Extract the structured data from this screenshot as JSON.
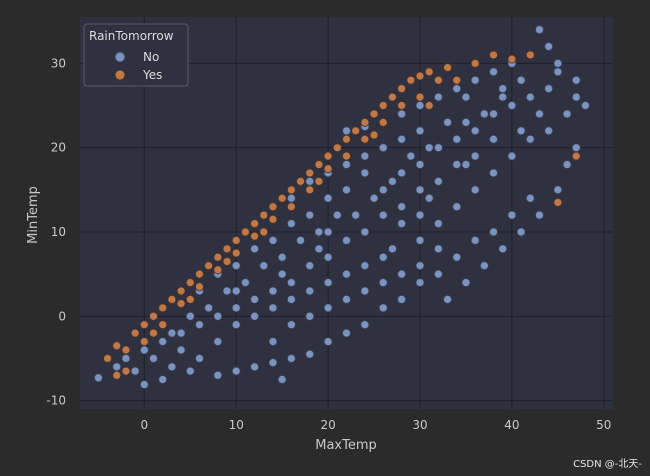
{
  "chart_data": {
    "type": "scatter",
    "title": "",
    "xlabel": "MaxTemp",
    "ylabel": "MinTemp",
    "xlim": [
      -7,
      51
    ],
    "ylim": [
      -11,
      35.5
    ],
    "xticks": [
      0,
      10,
      20,
      30,
      40,
      50
    ],
    "yticks": [
      -10,
      0,
      10,
      20,
      30
    ],
    "grid": true,
    "legend": {
      "title": "RainTomorrow",
      "placement": "top-left"
    },
    "series": [
      {
        "name": "No",
        "color": "#7b93c0",
        "edge_color": "#3a4152",
        "points": [
          [
            -5,
            -7.3
          ],
          [
            -3,
            -6
          ],
          [
            -1,
            -6.5
          ],
          [
            0,
            -8.1
          ],
          [
            1,
            -5
          ],
          [
            2,
            -7.5
          ],
          [
            3,
            -6
          ],
          [
            4,
            -4
          ],
          [
            5,
            -6.5
          ],
          [
            6,
            -5
          ],
          [
            8,
            -7
          ],
          [
            10,
            -6.5
          ],
          [
            12,
            -6
          ],
          [
            14,
            -5.5
          ],
          [
            15,
            -7.5
          ],
          [
            16,
            -5
          ],
          [
            18,
            -4.5
          ],
          [
            20,
            -3
          ],
          [
            22,
            -2
          ],
          [
            24,
            -1
          ],
          [
            -2,
            -5
          ],
          [
            0,
            -4
          ],
          [
            2,
            -3
          ],
          [
            4,
            -2
          ],
          [
            6,
            -1
          ],
          [
            8,
            0
          ],
          [
            10,
            1
          ],
          [
            12,
            2
          ],
          [
            14,
            3
          ],
          [
            16,
            4
          ],
          [
            3,
            -2
          ],
          [
            5,
            0
          ],
          [
            7,
            1
          ],
          [
            9,
            3
          ],
          [
            11,
            4
          ],
          [
            13,
            6
          ],
          [
            15,
            7
          ],
          [
            17,
            9
          ],
          [
            19,
            10
          ],
          [
            21,
            12
          ],
          [
            8,
            -3
          ],
          [
            10,
            -1
          ],
          [
            12,
            0
          ],
          [
            14,
            1
          ],
          [
            16,
            2
          ],
          [
            18,
            3
          ],
          [
            20,
            4
          ],
          [
            22,
            5
          ],
          [
            24,
            6
          ],
          [
            26,
            7
          ],
          [
            6,
            3
          ],
          [
            8,
            5
          ],
          [
            10,
            6
          ],
          [
            12,
            8
          ],
          [
            14,
            9
          ],
          [
            16,
            11
          ],
          [
            18,
            12
          ],
          [
            20,
            14
          ],
          [
            22,
            15
          ],
          [
            24,
            17
          ],
          [
            14,
            -3
          ],
          [
            16,
            -1
          ],
          [
            18,
            0
          ],
          [
            20,
            1
          ],
          [
            22,
            2
          ],
          [
            24,
            3
          ],
          [
            26,
            4
          ],
          [
            28,
            5
          ],
          [
            30,
            6
          ],
          [
            32,
            8
          ],
          [
            12,
            11
          ],
          [
            14,
            13
          ],
          [
            16,
            14
          ],
          [
            18,
            16
          ],
          [
            20,
            17
          ],
          [
            22,
            18
          ],
          [
            24,
            19
          ],
          [
            26,
            20
          ],
          [
            28,
            21
          ],
          [
            30,
            22
          ],
          [
            20,
            7
          ],
          [
            22,
            9
          ],
          [
            24,
            10
          ],
          [
            26,
            12
          ],
          [
            28,
            13
          ],
          [
            30,
            15
          ],
          [
            32,
            16
          ],
          [
            34,
            18
          ],
          [
            36,
            19
          ],
          [
            38,
            21
          ],
          [
            24,
            -1
          ],
          [
            26,
            1
          ],
          [
            28,
            2
          ],
          [
            30,
            4
          ],
          [
            32,
            5
          ],
          [
            34,
            7
          ],
          [
            36,
            9
          ],
          [
            38,
            10
          ],
          [
            40,
            12
          ],
          [
            42,
            14
          ],
          [
            26,
            15
          ],
          [
            28,
            17
          ],
          [
            30,
            18
          ],
          [
            32,
            20
          ],
          [
            34,
            21
          ],
          [
            36,
            22
          ],
          [
            38,
            24
          ],
          [
            40,
            25
          ],
          [
            42,
            26
          ],
          [
            44,
            27
          ],
          [
            30,
            9
          ],
          [
            32,
            11
          ],
          [
            34,
            13
          ],
          [
            36,
            15
          ],
          [
            38,
            17
          ],
          [
            40,
            19
          ],
          [
            42,
            21
          ],
          [
            44,
            22
          ],
          [
            46,
            24
          ],
          [
            47,
            26
          ],
          [
            28,
            24
          ],
          [
            30,
            25
          ],
          [
            32,
            26
          ],
          [
            34,
            27
          ],
          [
            36,
            28
          ],
          [
            38,
            29
          ],
          [
            40,
            30
          ],
          [
            42,
            31
          ],
          [
            44,
            32
          ],
          [
            43,
            34
          ],
          [
            33,
            2
          ],
          [
            35,
            4
          ],
          [
            37,
            6
          ],
          [
            39,
            8
          ],
          [
            41,
            10
          ],
          [
            43,
            12
          ],
          [
            45,
            15
          ],
          [
            46,
            18
          ],
          [
            47,
            20
          ],
          [
            48,
            25
          ],
          [
            22,
            22
          ],
          [
            24,
            22.5
          ],
          [
            26,
            23
          ],
          [
            28,
            11
          ],
          [
            30,
            12
          ],
          [
            35,
            26
          ],
          [
            37,
            24
          ],
          [
            39,
            26
          ],
          [
            41,
            28
          ],
          [
            45,
            29
          ],
          [
            18,
            6
          ],
          [
            20,
            10
          ],
          [
            25,
            14
          ],
          [
            27,
            8
          ],
          [
            29,
            19
          ],
          [
            31,
            14
          ],
          [
            33,
            23
          ],
          [
            35,
            18
          ],
          [
            41,
            22
          ],
          [
            43,
            24
          ],
          [
            10,
            3
          ],
          [
            15,
            5
          ],
          [
            19,
            8
          ],
          [
            23,
            12
          ],
          [
            27,
            16
          ],
          [
            31,
            20
          ],
          [
            35,
            23
          ],
          [
            39,
            27
          ],
          [
            45,
            30
          ],
          [
            47,
            28
          ]
        ]
      },
      {
        "name": "Yes",
        "color": "#c07848",
        "edge_color": "#4a3426",
        "points": [
          [
            -4,
            -5
          ],
          [
            -3,
            -3.5
          ],
          [
            -2,
            -4
          ],
          [
            -1,
            -2
          ],
          [
            0,
            -1
          ],
          [
            0,
            -3
          ],
          [
            1,
            0
          ],
          [
            2,
            1
          ],
          [
            2,
            -1
          ],
          [
            3,
            2
          ],
          [
            4,
            1.5
          ],
          [
            4,
            3
          ],
          [
            5,
            4
          ],
          [
            6,
            3.5
          ],
          [
            6,
            5
          ],
          [
            7,
            6
          ],
          [
            8,
            5.5
          ],
          [
            8,
            7
          ],
          [
            9,
            8
          ],
          [
            10,
            9
          ],
          [
            10,
            7.5
          ],
          [
            11,
            10
          ],
          [
            12,
            11
          ],
          [
            12,
            9.5
          ],
          [
            13,
            12
          ],
          [
            14,
            13
          ],
          [
            14,
            11.5
          ],
          [
            15,
            14
          ],
          [
            16,
            15
          ],
          [
            16,
            13
          ],
          [
            17,
            16
          ],
          [
            18,
            17
          ],
          [
            18,
            15
          ],
          [
            19,
            18
          ],
          [
            20,
            19
          ],
          [
            20,
            17.5
          ],
          [
            21,
            20
          ],
          [
            22,
            21
          ],
          [
            22,
            19
          ],
          [
            23,
            22
          ],
          [
            24,
            23
          ],
          [
            24,
            21
          ],
          [
            25,
            24
          ],
          [
            26,
            25
          ],
          [
            26,
            23
          ],
          [
            27,
            26
          ],
          [
            28,
            27
          ],
          [
            28,
            25
          ],
          [
            29,
            28
          ],
          [
            30,
            28.5
          ],
          [
            30,
            26
          ],
          [
            31,
            29
          ],
          [
            32,
            28
          ],
          [
            33,
            29.5
          ],
          [
            34,
            28
          ],
          [
            36,
            30
          ],
          [
            38,
            31
          ],
          [
            40,
            30.5
          ],
          [
            42,
            31
          ],
          [
            -2,
            -6.5
          ],
          [
            -3,
            -7
          ],
          [
            1,
            -2
          ],
          [
            5,
            2
          ],
          [
            9,
            6.5
          ],
          [
            13,
            10
          ],
          [
            19,
            16
          ],
          [
            25,
            21.5
          ],
          [
            31,
            25
          ],
          [
            45,
            13.5
          ],
          [
            47,
            19
          ]
        ]
      }
    ]
  },
  "watermark": "CSDN @-北天-"
}
